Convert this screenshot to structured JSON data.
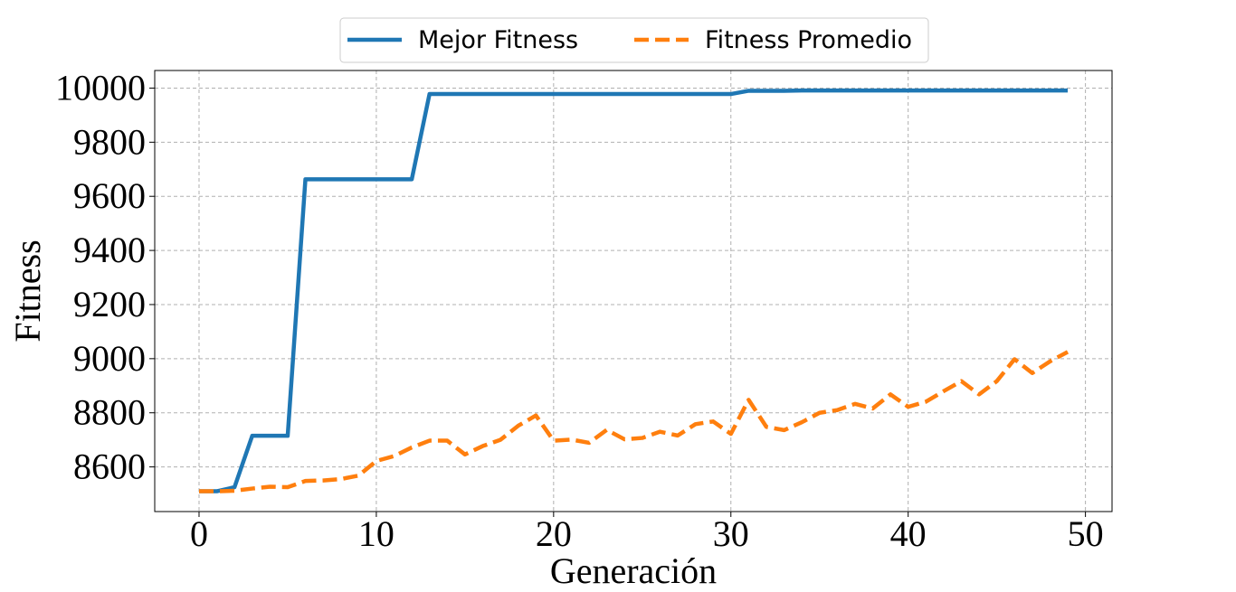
{
  "chart_data": {
    "type": "line",
    "title": "",
    "xlabel": "Generación",
    "ylabel": "Fitness",
    "xlim": [
      -2.5,
      51.5
    ],
    "ylim": [
      8435,
      10065
    ],
    "xticks": [
      0,
      10,
      20,
      30,
      40,
      50
    ],
    "yticks": [
      8600,
      8800,
      9000,
      9200,
      9400,
      9600,
      9800,
      10000
    ],
    "grid": true,
    "legend_position": "top-center, above plot",
    "x": [
      0,
      1,
      2,
      3,
      4,
      5,
      6,
      7,
      8,
      9,
      10,
      11,
      12,
      13,
      14,
      15,
      16,
      17,
      18,
      19,
      20,
      21,
      22,
      23,
      24,
      25,
      26,
      27,
      28,
      29,
      30,
      31,
      32,
      33,
      34,
      35,
      36,
      37,
      38,
      39,
      40,
      41,
      42,
      43,
      44,
      45,
      46,
      47,
      48,
      49
    ],
    "series": [
      {
        "name": "Mejor Fitness",
        "color": "#1f77b4",
        "style": "solid",
        "values": [
          8510,
          8510,
          8525,
          8715,
          8715,
          8715,
          9663,
          9663,
          9663,
          9663,
          9663,
          9663,
          9663,
          9978,
          9978,
          9978,
          9978,
          9978,
          9978,
          9978,
          9978,
          9978,
          9978,
          9978,
          9978,
          9978,
          9978,
          9978,
          9978,
          9978,
          9978,
          9990,
          9990,
          9990,
          9991,
          9991,
          9991,
          9991,
          9991,
          9991,
          9991,
          9991,
          9991,
          9991,
          9991,
          9991,
          9991,
          9991,
          9991,
          9991
        ]
      },
      {
        "name": "Fitness Promedio",
        "color": "#ff7f0e",
        "style": "dashed",
        "values": [
          8510,
          8510,
          8512,
          8520,
          8527,
          8525,
          8548,
          8550,
          8555,
          8568,
          8622,
          8640,
          8672,
          8697,
          8697,
          8646,
          8677,
          8700,
          8752,
          8790,
          8697,
          8701,
          8689,
          8737,
          8702,
          8707,
          8730,
          8716,
          8758,
          8768,
          8722,
          8848,
          8748,
          8736,
          8765,
          8800,
          8810,
          8833,
          8816,
          8868,
          8822,
          8841,
          8880,
          8917,
          8868,
          8917,
          8998,
          8947,
          8990,
          9025
        ]
      }
    ]
  }
}
